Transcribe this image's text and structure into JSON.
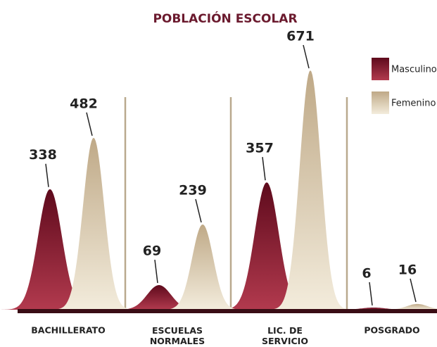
{
  "chart_data": {
    "type": "bar",
    "title": "POBLACIÓN ESCOLAR",
    "categories": [
      "BACHILLERATO",
      "ESCUELAS NORMALES",
      "LIC. DE SERVICIO",
      "POSGRADO"
    ],
    "series": [
      {
        "name": "Masculino",
        "color": "#7a1327",
        "values": [
          338,
          69,
          357,
          6
        ]
      },
      {
        "name": "Femenino",
        "color": "#cbb899",
        "values": [
          482,
          239,
          671,
          16
        ]
      }
    ]
  }
}
